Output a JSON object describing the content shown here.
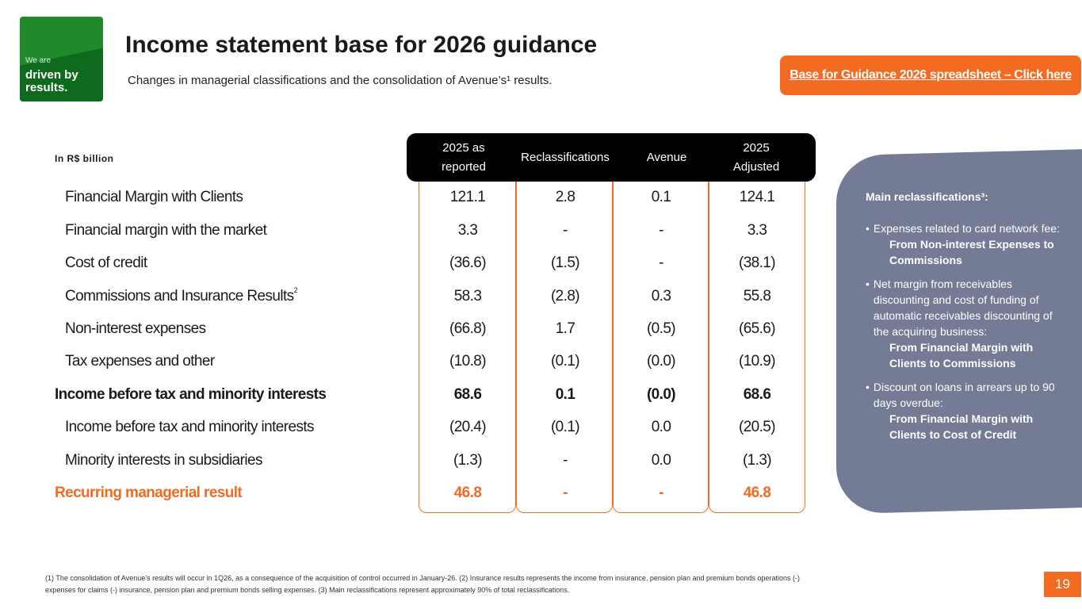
{
  "logo": {
    "small": "We are",
    "big": "driven by results."
  },
  "title": "Income statement base for 2026 guidance",
  "subtitle": "Changes in managerial classifications and the consolidation of Avenue’s¹ results.",
  "link_button": "Base for Guidance 2026  spreadsheet – Click here",
  "unit_label": "In R$ billion",
  "columns": [
    "2025 as reported",
    "Reclassifications",
    "Avenue",
    "2025 Adjusted"
  ],
  "rows": [
    {
      "label": "Financial Margin with Clients",
      "sup": "",
      "values": [
        "121.1",
        "2.8",
        "0.1",
        "124.1"
      ]
    },
    {
      "label": "Financial margin with the market",
      "sup": "",
      "values": [
        "3.3",
        "-",
        "-",
        "3.3"
      ]
    },
    {
      "label": "Cost of credit",
      "sup": "",
      "values": [
        "(36.6)",
        "(1.5)",
        "-",
        "(38.1)"
      ]
    },
    {
      "label": "Commissions and Insurance Results",
      "sup": "2",
      "values": [
        "58.3",
        "(2.8)",
        "0.3",
        "55.8"
      ]
    },
    {
      "label": "Non-interest expenses",
      "sup": "",
      "values": [
        "(66.8)",
        "1.7",
        "(0.5)",
        "(65.6)"
      ]
    },
    {
      "label": "Tax expenses and other",
      "sup": "",
      "values": [
        "(10.8)",
        "(0.1)",
        "(0.0)",
        "(10.9)"
      ]
    },
    {
      "label": "Income before tax and minority interests",
      "sup": "",
      "values": [
        "68.6",
        "0.1",
        "(0.0)",
        "68.6"
      ]
    },
    {
      "label": "Income before tax and minority interests",
      "sup": "",
      "values": [
        "(20.4)",
        "(0.1)",
        "0.0",
        "(20.5)"
      ]
    },
    {
      "label": "Minority interests in subsidiaries",
      "sup": "",
      "values": [
        "(1.3)",
        "-",
        "0.0",
        "(1.3)"
      ]
    },
    {
      "label": "Recurring managerial result",
      "sup": "",
      "values": [
        "46.8",
        "-",
        "-",
        "46.8"
      ]
    }
  ],
  "side_panel": {
    "title": "Main reclassifications³:",
    "items": [
      {
        "text": "Expenses related to card network fee:",
        "detail": "From Non-interest Expenses to Commissions"
      },
      {
        "text": "Net margin from receivables discounting and cost of funding of automatic receivables discounting of the acquiring business:",
        "detail": "From Financial Margin with Clients to Commissions"
      },
      {
        "text": "Discount on loans in arrears up to 90 days overdue:",
        "detail": "From Financial Margin with Clients to Cost of Credit"
      }
    ]
  },
  "footnote": "(1) The consolidation of Avenue’s results will occur in 1Q26, as a consequence of the acquisition of control occurred in January-26. (2) Insurance results represents the income from insurance, pension plan and premium bonds operations (-) expenses for claims (-) insurance, pension plan and premium bonds selling expenses. (3) Main reclassifications represent approximately 90% of total reclassifications.",
  "page_number": "19"
}
